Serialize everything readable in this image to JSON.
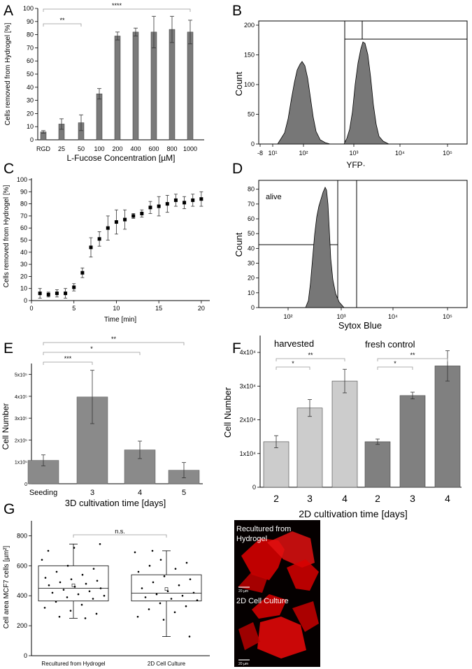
{
  "panels": {
    "A": "A",
    "B": "B",
    "C": "C",
    "D": "D",
    "E": "E",
    "F": "F",
    "G": "G"
  },
  "chart_data": [
    {
      "id": "A",
      "type": "bar",
      "xlabel": "L-Fucose Concentration [µM]",
      "ylabel": "Cells removed from Hydrogel [%]",
      "categories": [
        "RGD",
        "25",
        "50",
        "100",
        "200",
        "400",
        "600",
        "800",
        "1000"
      ],
      "values": [
        6,
        12,
        13,
        35,
        79,
        82,
        82,
        84,
        82
      ],
      "errors": [
        1,
        4,
        6,
        4,
        3,
        3,
        12,
        10,
        9
      ],
      "ylim": [
        0,
        100
      ],
      "yticks": [
        "0",
        "10",
        "20",
        "30",
        "40",
        "50",
        "60",
        "70",
        "80",
        "90",
        "100"
      ],
      "significance": [
        {
          "from": 0,
          "to": 2,
          "label": "**"
        },
        {
          "from": 0,
          "to": 8,
          "label": "****"
        }
      ]
    },
    {
      "id": "B",
      "type": "area",
      "xlabel": "YFP·",
      "ylabel": "Count",
      "ylim": [
        0,
        200
      ],
      "yticks": [
        "0",
        "50",
        "100",
        "150",
        "200"
      ],
      "xticks": [
        "-8",
        "10¹",
        "10²",
        "10³",
        "10⁴",
        "10⁵"
      ]
    },
    {
      "id": "C",
      "type": "scatter",
      "xlabel": "Time [min]",
      "ylabel": "Cells removed from Hydrogel [%]",
      "xlim": [
        0,
        21
      ],
      "ylim": [
        0,
        100
      ],
      "xticks": [
        "0",
        "5",
        "10",
        "15",
        "20"
      ],
      "yticks": [
        "0",
        "10",
        "20",
        "30",
        "40",
        "50",
        "60",
        "70",
        "80",
        "90",
        "100"
      ],
      "x": [
        1,
        2,
        3,
        4,
        5,
        6,
        7,
        8,
        9,
        10,
        11,
        12,
        13,
        14,
        15,
        16,
        17,
        18,
        19,
        20
      ],
      "y": [
        6,
        5,
        6,
        6,
        11,
        23,
        44,
        51,
        60,
        65,
        67,
        70,
        72,
        77,
        78,
        80,
        83,
        81,
        83,
        84
      ],
      "errors": [
        4,
        2,
        3,
        4,
        3,
        4,
        8,
        6,
        10,
        10,
        8,
        2,
        3,
        5,
        8,
        7,
        5,
        5,
        5,
        6
      ]
    },
    {
      "id": "D",
      "type": "area",
      "xlabel": "Sytox Blue",
      "ylabel": "Count",
      "gate_label": "alive",
      "xticks": [
        "10²",
        "10³",
        "10⁴",
        "10⁵"
      ],
      "yticks": [
        "0",
        "10",
        "20",
        "30",
        "40",
        "50",
        "60",
        "70",
        "80"
      ]
    },
    {
      "id": "E",
      "type": "bar",
      "xlabel": "3D cultivation time [days]",
      "ylabel": "Cell Number",
      "categories": [
        "Seeding",
        "3",
        "4",
        "5"
      ],
      "values": [
        107000,
        397000,
        155000,
        62000
      ],
      "errors": [
        25000,
        122000,
        40000,
        35000
      ],
      "ylim": [
        0,
        550000
      ],
      "yticks": [
        "0",
        "1x10⁵",
        "2x10⁵",
        "3x10⁵",
        "4x10⁵",
        "5x10⁵"
      ],
      "significance": [
        {
          "from": 0,
          "to": 1,
          "label": "***"
        },
        {
          "from": 0,
          "to": 2,
          "label": "*"
        },
        {
          "from": 0,
          "to": 3,
          "label": "**"
        }
      ]
    },
    {
      "id": "F",
      "type": "bar",
      "xlabel": "2D cultivation time [days]",
      "ylabel": "Cell Number",
      "groups": [
        "harvested",
        "fresh control"
      ],
      "categories": [
        "2",
        "3",
        "4",
        "2",
        "3",
        "4"
      ],
      "values": [
        13500,
        23500,
        31500,
        13500,
        27200,
        36000
      ],
      "errors": [
        1800,
        2500,
        3500,
        800,
        1000,
        4500
      ],
      "colors": [
        "#cccccc",
        "#cccccc",
        "#cccccc",
        "#808080",
        "#808080",
        "#808080"
      ],
      "ylim": [
        0,
        45000
      ],
      "yticks": [
        "0",
        "1x10⁴",
        "2x10⁴",
        "3x10⁴",
        "4x10⁴"
      ],
      "significance": [
        {
          "from": 0,
          "to": 1,
          "label": "*"
        },
        {
          "from": 0,
          "to": 2,
          "label": "**"
        },
        {
          "from": 3,
          "to": 4,
          "label": "*"
        },
        {
          "from": 3,
          "to": 5,
          "label": "**"
        }
      ]
    },
    {
      "id": "G",
      "type": "box",
      "ylabel": "Cell area MCF7 cells [µm²]",
      "categories": [
        "Recultured from Hydrogel",
        "2D Cell Culture"
      ],
      "ylim": [
        0,
        900
      ],
      "yticks": [
        "0",
        "200",
        "400",
        "600",
        "800"
      ],
      "boxes": [
        {
          "q1": 365,
          "median": 450,
          "q3": 600,
          "mean": 470,
          "whisker_low": 250,
          "whisker_high": 745,
          "points": [
            640,
            600,
            580,
            560,
            540,
            520,
            510,
            500,
            490,
            480,
            470,
            460,
            450,
            440,
            430,
            420,
            410,
            400,
            390,
            380,
            360,
            340,
            320,
            300,
            280,
            260,
            250,
            700,
            720,
            745
          ]
        },
        {
          "q1": 365,
          "median": 418,
          "q3": 540,
          "mean": 445,
          "whisker_low": 128,
          "whisker_high": 700,
          "points": [
            690,
            640,
            620,
            600,
            580,
            560,
            530,
            510,
            490,
            470,
            450,
            430,
            420,
            410,
            400,
            390,
            380,
            370,
            350,
            330,
            310,
            290,
            260,
            240,
            128,
            700
          ]
        }
      ],
      "significance": [
        {
          "from": 0,
          "to": 1,
          "label": "n.s."
        }
      ]
    }
  ],
  "micrograph": {
    "label_top": "Recultured from Hydrogel",
    "label_bottom": "2D Cell Culture",
    "scale_top": "20 µm",
    "scale_bottom": "20 µm"
  }
}
